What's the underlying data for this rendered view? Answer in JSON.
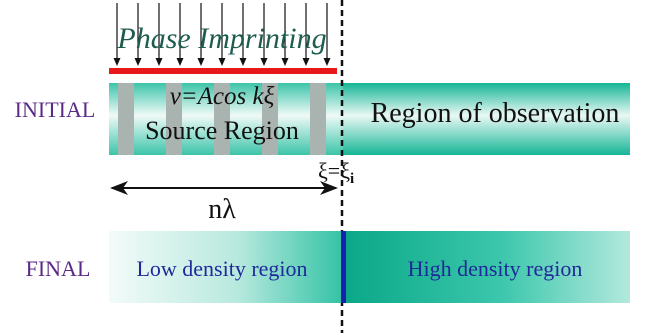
{
  "phase_imprinting": {
    "label": "Phase Imprinting",
    "color": "#1e5c4f",
    "bar_color": "#e8191b",
    "arrow_count": 11
  },
  "initial": {
    "row_label": "INITIAL",
    "row_label_color": "#5b2a86",
    "formula": "v=Acos kξ",
    "source_label": "Source Region",
    "observation_label": "Region of observation",
    "boundary_label_main": "ξ=ξ",
    "boundary_label_sub": "i",
    "stripe_count": 5
  },
  "wavelength": {
    "label": "nλ"
  },
  "final": {
    "row_label": "FINAL",
    "row_label_color": "#5b2a86",
    "low_label": "Low density region",
    "high_label": "High density region",
    "text_color": "#1f2a9a",
    "divider_color": "#1a1fb0"
  },
  "colors": {
    "teal_light": "#eaf8f4",
    "teal": "#30c2a7",
    "teal_dark": "#0fb090",
    "stripe": "#a9b3b0"
  }
}
